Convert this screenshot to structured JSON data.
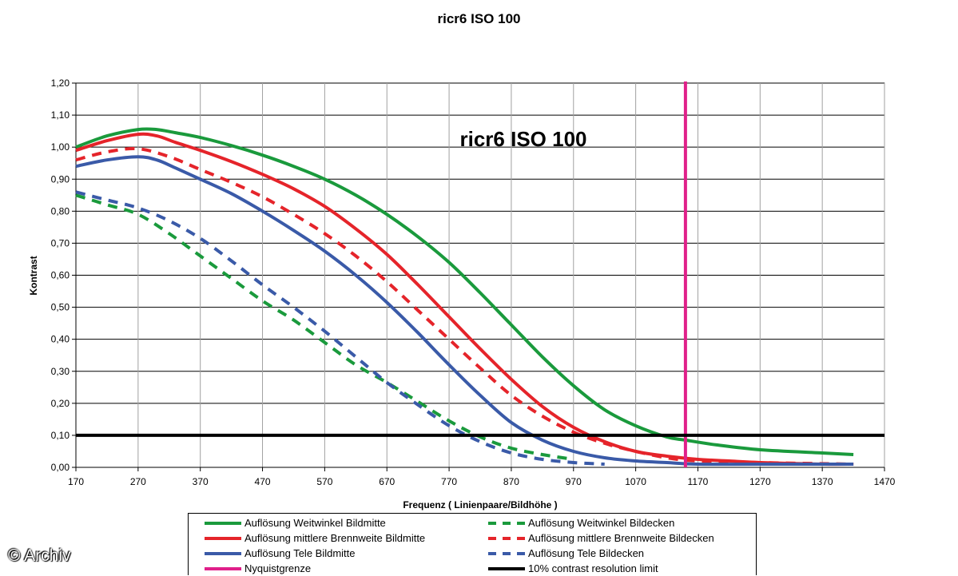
{
  "watermark": "© Archiv",
  "chart_data": {
    "type": "line",
    "title": "ricr6 ISO 100",
    "inner_title": "ricr6 ISO 100",
    "xlabel": "Frequenz ( Linienpaare/Bildhöhe )",
    "ylabel": "Kontrast",
    "xlim": [
      170,
      1470
    ],
    "ylim": [
      0,
      1.2
    ],
    "xticks": [
      "170",
      "270",
      "370",
      "470",
      "570",
      "670",
      "770",
      "870",
      "970",
      "1070",
      "1170",
      "1270",
      "1370",
      "1470"
    ],
    "yticks": [
      "0,00",
      "0,10",
      "0,20",
      "0,30",
      "0,40",
      "0,50",
      "0,60",
      "0,70",
      "0,80",
      "0,90",
      "1,00",
      "1,10",
      "1,20"
    ],
    "grid": "horizontal and vertical",
    "legend_position": "bottom",
    "series": [
      {
        "name": "Auflösung Weitwinkel Bildmitte",
        "color": "#1a9a3c",
        "style": "solid",
        "x": [
          170,
          220,
          270,
          300,
          330,
          370,
          420,
          470,
          520,
          570,
          620,
          670,
          720,
          770,
          820,
          870,
          920,
          970,
          1020,
          1070,
          1120,
          1150,
          1200,
          1270,
          1370,
          1420
        ],
        "y": [
          1.0,
          1.035,
          1.055,
          1.055,
          1.045,
          1.03,
          1.005,
          0.975,
          0.94,
          0.9,
          0.85,
          0.79,
          0.72,
          0.64,
          0.545,
          0.445,
          0.345,
          0.255,
          0.18,
          0.13,
          0.095,
          0.085,
          0.07,
          0.055,
          0.045,
          0.04
        ]
      },
      {
        "name": "Auflösung Weitwinkel Bildecken",
        "color": "#1a9a3c",
        "style": "dashed",
        "x": [
          170,
          220,
          270,
          320,
          370,
          420,
          470,
          520,
          570,
          620,
          670,
          720,
          770,
          820,
          870,
          920,
          970
        ],
        "y": [
          0.85,
          0.82,
          0.79,
          0.73,
          0.66,
          0.59,
          0.52,
          0.46,
          0.39,
          0.32,
          0.265,
          0.205,
          0.145,
          0.095,
          0.06,
          0.04,
          0.025
        ]
      },
      {
        "name": "Auflösung mittlere Brennweite Bildmitte",
        "color": "#e5242a",
        "style": "solid",
        "x": [
          170,
          220,
          270,
          300,
          330,
          370,
          420,
          470,
          520,
          570,
          620,
          670,
          720,
          770,
          820,
          870,
          920,
          970,
          1020,
          1070,
          1120,
          1170,
          1220,
          1270,
          1370,
          1420
        ],
        "y": [
          0.99,
          1.02,
          1.04,
          1.035,
          1.015,
          0.99,
          0.955,
          0.915,
          0.87,
          0.815,
          0.745,
          0.665,
          0.57,
          0.47,
          0.37,
          0.275,
          0.19,
          0.125,
          0.08,
          0.05,
          0.035,
          0.025,
          0.02,
          0.015,
          0.01,
          0.01
        ]
      },
      {
        "name": "Auflösung mittlere Brennweite Bildecken",
        "color": "#e5242a",
        "style": "dashed",
        "x": [
          170,
          220,
          270,
          320,
          370,
          420,
          470,
          520,
          570,
          620,
          670,
          720,
          770,
          820,
          870,
          920,
          970,
          1020,
          1070,
          1120,
          1170,
          1270,
          1420
        ],
        "y": [
          0.96,
          0.985,
          0.995,
          0.97,
          0.93,
          0.89,
          0.845,
          0.79,
          0.73,
          0.66,
          0.58,
          0.49,
          0.4,
          0.31,
          0.225,
          0.16,
          0.11,
          0.075,
          0.05,
          0.03,
          0.02,
          0.015,
          0.01
        ]
      },
      {
        "name": "Auflösung Tele Bildmitte",
        "color": "#3a5aa8",
        "style": "solid",
        "x": [
          170,
          220,
          270,
          300,
          330,
          370,
          420,
          470,
          520,
          570,
          620,
          670,
          720,
          770,
          820,
          870,
          920,
          970,
          1020,
          1070,
          1120,
          1170,
          1270,
          1420
        ],
        "y": [
          0.94,
          0.96,
          0.97,
          0.96,
          0.935,
          0.9,
          0.855,
          0.8,
          0.74,
          0.675,
          0.6,
          0.515,
          0.42,
          0.32,
          0.225,
          0.14,
          0.085,
          0.05,
          0.03,
          0.02,
          0.015,
          0.01,
          0.01,
          0.01
        ]
      },
      {
        "name": "Auflösung Tele Bildecken",
        "color": "#3a5aa8",
        "style": "dashed",
        "x": [
          170,
          220,
          270,
          320,
          370,
          420,
          470,
          520,
          570,
          620,
          670,
          720,
          770,
          820,
          870,
          920,
          970,
          1020
        ],
        "y": [
          0.86,
          0.835,
          0.81,
          0.77,
          0.715,
          0.645,
          0.57,
          0.5,
          0.425,
          0.345,
          0.265,
          0.195,
          0.13,
          0.08,
          0.045,
          0.025,
          0.015,
          0.01
        ]
      },
      {
        "name": "Nyquistgrenze",
        "color": "#e0208a",
        "style": "vertical",
        "x_value": 1150
      },
      {
        "name": "10% contrast resolution limit",
        "color": "#000000",
        "style": "horizontal",
        "y_value": 0.1
      }
    ]
  },
  "legend": {
    "items": [
      {
        "label": "Auflösung Weitwinkel Bildmitte",
        "color": "#1a9a3c",
        "style": "solid"
      },
      {
        "label": "Auflösung Weitwinkel Bildecken",
        "color": "#1a9a3c",
        "style": "dashed"
      },
      {
        "label": "Auflösung mittlere Brennweite Bildmitte",
        "color": "#e5242a",
        "style": "solid"
      },
      {
        "label": "Auflösung mittlere Brennweite Bildecken",
        "color": "#e5242a",
        "style": "dashed"
      },
      {
        "label": "Auflösung Tele Bildmitte",
        "color": "#3a5aa8",
        "style": "solid"
      },
      {
        "label": "Auflösung Tele Bildecken",
        "color": "#3a5aa8",
        "style": "dashed"
      },
      {
        "label": "Nyquistgrenze",
        "color": "#e0208a",
        "style": "solid"
      },
      {
        "label": "10% contrast resolution limit",
        "color": "#000000",
        "style": "solid"
      }
    ]
  }
}
